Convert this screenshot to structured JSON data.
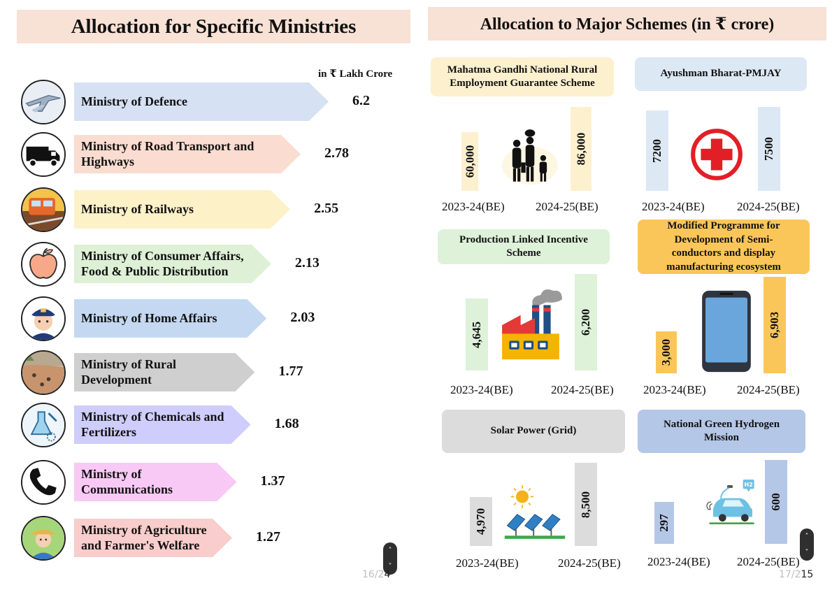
{
  "left_panel": {
    "title": "Allocation for Specific Ministries",
    "unit_label": "in ₹ Lakh Crore",
    "page_number": "16/2",
    "page_number_suffix": "4"
  },
  "right_panel": {
    "title": "Allocation to Major Schemes (in ₹ crore)",
    "page_number": "17/2",
    "page_number_suffix": "15"
  },
  "chart_data": [
    {
      "type": "bar",
      "title": "Allocation for Specific Ministries",
      "unit": "in ₹ Lakh Crore",
      "categories": [
        "Ministry of Defence",
        "Ministry of Road Transport and Highways",
        "Ministry of Railways",
        "Ministry of Consumer Affairs, Food & Public Distribution",
        "Ministry of Home Affairs",
        "Ministry of Rural Development",
        "Ministry of Chemicals and Fertilizers",
        "Ministry of Communications",
        "Ministry of Agriculture and Farmer's Welfare"
      ],
      "label_lines": [
        [
          "Ministry of Defence"
        ],
        [
          "Ministry of Road Transport and",
          "Highways"
        ],
        [
          "Ministry of Railways"
        ],
        [
          "Ministry of Consumer Affairs,",
          "Food & Public Distribution"
        ],
        [
          "Ministry of Home Affairs"
        ],
        [
          "Ministry of Rural",
          "Development"
        ],
        [
          "Ministry of Chemicals and",
          "Fertilizers"
        ],
        [
          "Ministry of",
          "Communications"
        ],
        [
          "Ministry of Agriculture",
          "and Farmer's Welfare"
        ]
      ],
      "values": [
        6.2,
        2.78,
        2.55,
        2.13,
        2.03,
        1.77,
        1.68,
        1.37,
        1.27
      ],
      "value_labels": [
        "6.2",
        "2.78",
        "2.55",
        "2.13",
        "2.03",
        "1.77",
        "1.68",
        "1.37",
        "1.27"
      ],
      "colors": [
        "#d6e1f3",
        "#fadcd0",
        "#fdf1c8",
        "#def0d5",
        "#c4d8f1",
        "#cfcfcf",
        "#cfcdfb",
        "#f9c9f6",
        "#f8cdcb"
      ],
      "icons": [
        "fighter-jet-icon",
        "truck-icon",
        "train-icon",
        "apple-icon",
        "police-officer-icon",
        "rural-field-icon",
        "chemical-lab-icon",
        "telephone-icon",
        "farmer-icon"
      ]
    },
    {
      "type": "bar",
      "title": "Allocation to Major Schemes (in ₹ crore)",
      "x": [
        "2023-24(BE)",
        "2024-25(BE)"
      ],
      "schemes": [
        {
          "name": "Mahatma Gandhi National Rural Employment Guarantee Scheme",
          "name_lines": [
            "Mahatma Gandhi National Rural",
            "Employment Guarantee Scheme"
          ],
          "values": [
            60000,
            86000
          ],
          "value_labels": [
            "60,000",
            "86,000"
          ],
          "label_color": "#fdf0cf",
          "bar_color": "#fdf0cf",
          "icon": "family-icon"
        },
        {
          "name": "Ayushman Bharat-PMJAY",
          "name_lines": [
            "Ayushman Bharat-PMJAY"
          ],
          "values": [
            7200,
            7500
          ],
          "value_labels": [
            "7200",
            "7500"
          ],
          "label_color": "#dde8f5",
          "bar_color": "#dde8f5",
          "icon": "medical-cross-icon"
        },
        {
          "name": "Production Linked Incentive Scheme",
          "name_lines": [
            "Production Linked Incentive",
            "Scheme"
          ],
          "values": [
            4645,
            6200
          ],
          "value_labels": [
            "4,645",
            "6,200"
          ],
          "label_color": "#def1d9",
          "bar_color": "#def1d9",
          "icon": "factory-icon"
        },
        {
          "name": "Modified Programme for Development of Semi-conductors and display manufacturing ecosystem",
          "name_lines": [
            "Modified Programme for",
            "Development of Semi-",
            "conductors and display",
            "manufacturing ecosystem"
          ],
          "values": [
            3000,
            6903
          ],
          "value_labels": [
            "3,000",
            "6,903"
          ],
          "label_color": "#fac65a",
          "bar_color": "#fac65a",
          "icon": "smartphone-icon"
        },
        {
          "name": "Solar Power (Grid)",
          "name_lines": [
            "Solar Power (Grid)"
          ],
          "values": [
            4970,
            8500
          ],
          "value_labels": [
            "4,970",
            "8,500"
          ],
          "label_color": "#dcdcdc",
          "bar_color": "#dcdcdc",
          "icon": "solar-panel-icon"
        },
        {
          "name": "National Green Hydrogen Mission",
          "name_lines": [
            "National Green Hydrogen",
            "Mission"
          ],
          "values": [
            297,
            600
          ],
          "value_labels": [
            "297",
            "600"
          ],
          "label_color": "#b5c7e7",
          "bar_color": "#b5c7e7",
          "icon": "hydrogen-car-icon"
        }
      ]
    }
  ],
  "controls": {
    "scroll_up_glyph": "˄",
    "scroll_down_glyph": "˅"
  }
}
